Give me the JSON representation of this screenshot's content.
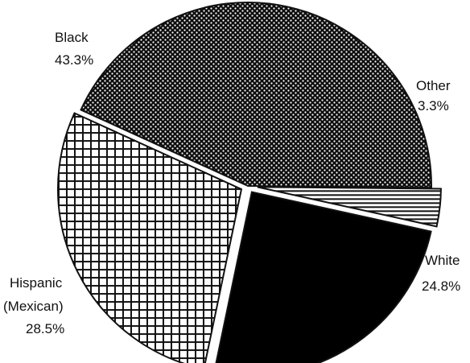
{
  "chart_data": {
    "type": "pie",
    "slices": [
      {
        "label": "Black",
        "value": 43.3,
        "value_label": "43.3%",
        "pattern": "dots",
        "color": "#111111"
      },
      {
        "label": "Other",
        "value": 3.3,
        "value_label": "3.3%",
        "pattern": "horizontal-lines",
        "color": "#111111"
      },
      {
        "label": "White",
        "value": 24.8,
        "value_label": "24.8%",
        "pattern": "solid",
        "color": "#000000"
      },
      {
        "label": "Hispanic (Mexican)",
        "label_lines": [
          "Hispanic",
          "(Mexican)"
        ],
        "value": 28.5,
        "value_label": "28.5%",
        "pattern": "grid",
        "color": "#111111"
      }
    ],
    "exploded": true,
    "legend": "none"
  }
}
